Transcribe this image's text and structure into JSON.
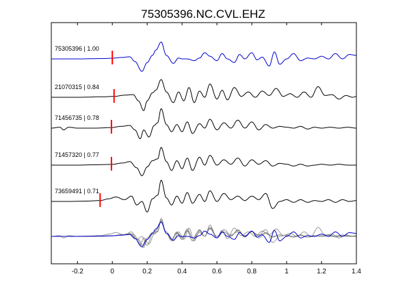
{
  "chart_data": {
    "type": "line",
    "title": "75305396.NC.CVL.EHZ",
    "xlabel": "",
    "ylabel": "",
    "xlim": [
      -0.35,
      1.4
    ],
    "x_ticks": [
      {
        "value": -0.2,
        "label": "-0.2"
      },
      {
        "value": 0,
        "label": "0"
      },
      {
        "value": 0.2,
        "label": "0.2"
      },
      {
        "value": 0.4,
        "label": "0.4"
      },
      {
        "value": 0.6,
        "label": "0.6"
      },
      {
        "value": 0.8,
        "label": "0.8"
      },
      {
        "value": 1.0,
        "label": "1"
      },
      {
        "value": 1.2,
        "label": "1.2"
      },
      {
        "value": 1.4,
        "label": "1.4"
      }
    ],
    "grid": false,
    "series": [
      {
        "name": "75305396 | 1.00",
        "color": "#0000cc",
        "pick_time": 0.0,
        "x": [
          -0.35,
          -0.2,
          -0.05,
          0.0,
          0.05,
          0.1,
          0.13,
          0.17,
          0.2,
          0.23,
          0.25,
          0.28,
          0.31,
          0.35,
          0.38,
          0.4,
          0.43,
          0.47,
          0.5,
          0.53,
          0.56,
          0.6,
          0.63,
          0.66,
          0.7,
          0.73,
          0.76,
          0.8,
          0.83,
          0.86,
          0.9,
          0.93,
          0.96,
          1.0,
          1.04,
          1.08,
          1.12,
          1.16,
          1.2,
          1.24,
          1.28,
          1.32,
          1.36,
          1.4
        ],
        "y": [
          0.0,
          0.0,
          0.02,
          0.04,
          0.08,
          0.12,
          -0.15,
          -0.7,
          -0.2,
          0.2,
          0.5,
          0.95,
          0.2,
          -0.25,
          0.05,
          0.0,
          0.0,
          -0.1,
          0.05,
          0.35,
          0.15,
          -0.1,
          0.3,
          0.0,
          -0.2,
          0.25,
          0.0,
          0.35,
          -0.05,
          0.1,
          -0.4,
          0.4,
          -0.3,
          0.0,
          0.3,
          -0.1,
          0.05,
          0.0,
          0.15,
          0.0,
          0.3,
          0.0,
          0.25,
          0.2
        ]
      },
      {
        "name": "21070315 | 0.84",
        "color": "#000000",
        "pick_time": 0.01,
        "x": [
          -0.35,
          -0.2,
          -0.05,
          0.01,
          0.07,
          0.12,
          0.15,
          0.18,
          0.2,
          0.23,
          0.25,
          0.28,
          0.31,
          0.35,
          0.38,
          0.41,
          0.44,
          0.47,
          0.5,
          0.53,
          0.56,
          0.6,
          0.63,
          0.66,
          0.7,
          0.74,
          0.78,
          0.82,
          0.86,
          0.9,
          0.94,
          0.98,
          1.02,
          1.06,
          1.1,
          1.14,
          1.18,
          1.22,
          1.26,
          1.3,
          1.34,
          1.38,
          1.4
        ],
        "y": [
          0.0,
          0.0,
          0.03,
          0.05,
          0.12,
          0.15,
          -0.2,
          -0.75,
          -0.2,
          0.25,
          0.4,
          1.0,
          0.3,
          -0.3,
          0.3,
          -0.2,
          0.55,
          -0.3,
          0.35,
          0.0,
          0.75,
          -0.1,
          0.4,
          -0.15,
          0.55,
          0.05,
          0.3,
          0.0,
          0.35,
          0.1,
          0.5,
          0.05,
          0.2,
          0.0,
          0.3,
          0.0,
          0.6,
          0.1,
          0.15,
          -0.1,
          0.1,
          0.0,
          0.05
        ]
      },
      {
        "name": "71456735 | 0.78",
        "color": "#000000",
        "pick_time": -0.005,
        "x": [
          -0.35,
          -0.3,
          -0.28,
          -0.25,
          -0.2,
          -0.1,
          -0.005,
          0.05,
          0.1,
          0.13,
          0.16,
          0.18,
          0.21,
          0.24,
          0.26,
          0.28,
          0.31,
          0.34,
          0.37,
          0.4,
          0.43,
          0.46,
          0.5,
          0.53,
          0.56,
          0.6,
          0.64,
          0.68,
          0.72,
          0.76,
          0.8,
          0.84,
          0.88,
          0.92,
          0.96,
          1.0,
          1.04,
          1.08,
          1.12,
          1.16,
          1.2,
          1.25,
          1.3,
          1.35,
          1.4
        ],
        "y": [
          0.0,
          0.05,
          -0.1,
          0.05,
          0.0,
          0.0,
          0.03,
          0.1,
          0.15,
          -0.1,
          -0.6,
          -0.1,
          -0.5,
          0.15,
          0.3,
          1.1,
          0.2,
          -0.2,
          0.2,
          -0.2,
          0.35,
          -0.3,
          0.25,
          0.0,
          0.5,
          -0.1,
          0.3,
          0.0,
          0.45,
          0.0,
          0.35,
          -0.1,
          0.2,
          0.0,
          0.1,
          0.05,
          0.0,
          0.1,
          -0.05,
          0.05,
          0.0,
          0.05,
          0.0,
          0.05,
          0.0
        ]
      },
      {
        "name": "71457320 | 0.77",
        "color": "#000000",
        "pick_time": -0.005,
        "x": [
          -0.35,
          -0.2,
          -0.1,
          -0.005,
          0.06,
          0.1,
          0.14,
          0.17,
          0.2,
          0.23,
          0.26,
          0.28,
          0.31,
          0.34,
          0.37,
          0.4,
          0.43,
          0.46,
          0.5,
          0.53,
          0.56,
          0.6,
          0.64,
          0.68,
          0.72,
          0.76,
          0.8,
          0.84,
          0.88,
          0.92,
          0.96,
          1.0,
          1.04,
          1.08,
          1.12,
          1.16,
          1.2,
          1.25,
          1.3,
          1.35,
          1.4
        ],
        "y": [
          0.0,
          0.0,
          0.02,
          0.04,
          0.12,
          0.2,
          -0.15,
          -0.6,
          -0.1,
          0.25,
          0.35,
          1.0,
          0.2,
          -0.3,
          0.25,
          -0.2,
          0.4,
          -0.3,
          0.45,
          0.0,
          0.55,
          0.0,
          0.3,
          0.05,
          0.4,
          -0.05,
          0.3,
          0.05,
          0.25,
          -0.05,
          0.1,
          0.05,
          -0.05,
          0.05,
          -0.05,
          0.0,
          0.05,
          0.0,
          0.05,
          0.0,
          0.0
        ]
      },
      {
        "name": "73659491 | 0.71",
        "color": "#000000",
        "pick_time": -0.07,
        "x": [
          -0.35,
          -0.25,
          -0.15,
          -0.07,
          -0.02,
          0.02,
          0.07,
          0.11,
          0.14,
          0.17,
          0.2,
          0.23,
          0.26,
          0.28,
          0.31,
          0.34,
          0.37,
          0.4,
          0.43,
          0.46,
          0.5,
          0.53,
          0.56,
          0.6,
          0.64,
          0.68,
          0.72,
          0.76,
          0.8,
          0.84,
          0.88,
          0.92,
          0.96,
          1.0,
          1.04,
          1.08,
          1.12,
          1.16,
          1.2,
          1.24,
          1.28,
          1.32,
          1.36,
          1.4
        ],
        "y": [
          0.0,
          0.0,
          0.02,
          0.05,
          0.15,
          0.25,
          0.1,
          0.3,
          -0.2,
          0.0,
          -0.6,
          0.15,
          0.35,
          1.2,
          0.2,
          -0.2,
          0.3,
          -0.1,
          0.5,
          -0.1,
          0.4,
          0.0,
          0.6,
          0.0,
          0.45,
          0.1,
          0.3,
          0.05,
          0.3,
          0.1,
          0.45,
          -0.4,
          0.0,
          0.1,
          -0.05,
          0.1,
          -0.05,
          0.05,
          0.0,
          0.1,
          -0.05,
          0.1,
          0.0,
          0.05
        ]
      }
    ],
    "stack_color": "#7f7f7f",
    "pick_color": "#ff0000"
  }
}
